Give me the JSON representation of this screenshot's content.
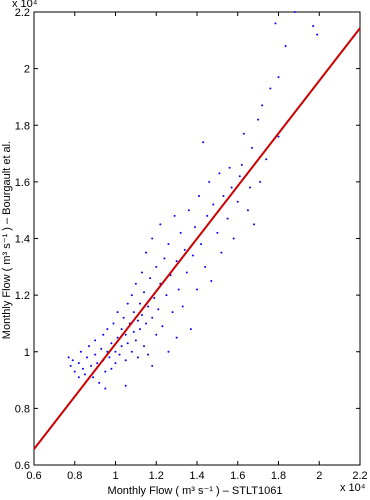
{
  "chart_data": {
    "type": "scatter",
    "x_label": "Monthly Flow ( m³ s⁻¹ )  – STLT1061",
    "y_label": "Monthly Flow ( m³ s⁻¹ )  – Bourgault et al.",
    "x_exponent": "x 10⁴",
    "y_exponent": "x 10⁴",
    "xlim": [
      0.6,
      2.2
    ],
    "ylim": [
      0.6,
      2.2
    ],
    "xticks": [
      0.6,
      0.8,
      1,
      1.2,
      1.4,
      1.6,
      1.8,
      2,
      2.2
    ],
    "yticks": [
      0.6,
      0.8,
      1,
      1.2,
      1.4,
      1.6,
      1.8,
      2,
      2.2
    ],
    "series": [
      {
        "type": "scatter",
        "color": "#0000ff",
        "x": [
          0.77,
          0.78,
          0.79,
          0.8,
          0.82,
          0.83,
          0.84,
          0.85,
          0.86,
          0.87,
          0.88,
          0.89,
          0.9,
          0.9,
          0.91,
          0.92,
          0.93,
          0.94,
          0.94,
          0.95,
          0.96,
          0.96,
          0.97,
          0.98,
          0.98,
          0.99,
          1,
          1,
          1.01,
          1.01,
          1.02,
          1.03,
          1.03,
          1.04,
          1.05,
          1.05,
          1.06,
          1.06,
          1.07,
          1.08,
          1.08,
          1.09,
          1.09,
          1.1,
          1.1,
          1.11,
          1.11,
          1.12,
          1.12,
          1.13,
          1.13,
          1.14,
          1.14,
          1.15,
          1.15,
          1.16,
          1.16,
          1.17,
          1.18,
          1.18,
          1.19,
          1.2,
          1.2,
          1.21,
          1.22,
          1.22,
          1.23,
          1.24,
          1.25,
          1.26,
          1.26,
          1.27,
          1.28,
          1.29,
          1.3,
          1.3,
          1.31,
          1.32,
          1.33,
          1.34,
          1.35,
          1.36,
          1.37,
          1.38,
          1.39,
          1.4,
          1.41,
          1.42,
          1.43,
          1.44,
          1.45,
          1.46,
          1.47,
          1.48,
          1.5,
          1.51,
          1.52,
          1.53,
          1.55,
          1.56,
          1.57,
          1.58,
          1.6,
          1.61,
          1.62,
          1.63,
          1.65,
          1.66,
          1.67,
          1.68,
          1.7,
          1.71,
          1.72,
          1.74,
          1.76,
          1.785,
          1.8,
          1.8,
          1.835,
          1.88,
          1.97,
          1.99,
          1.05,
          0.95,
          1.18,
          0.82
        ],
        "values": [
          0.98,
          0.95,
          0.97,
          0.93,
          0.96,
          1,
          0.94,
          0.92,
          0.98,
          1.02,
          0.95,
          0.91,
          0.99,
          1.04,
          0.96,
          0.89,
          1.01,
          0.97,
          1.06,
          0.93,
          1,
          1.08,
          0.98,
          1.03,
          0.94,
          1.1,
          1,
          0.96,
          1.05,
          1.14,
          0.99,
          1.08,
          1.02,
          1.12,
          0.97,
          1.06,
          1.17,
          1.03,
          1.1,
          1,
          1.2,
          1.07,
          1.14,
          1.04,
          1.24,
          1.11,
          0.98,
          1.17,
          1.08,
          1.28,
          1.13,
          1.02,
          1.21,
          1.1,
          1.35,
          1.16,
          0.99,
          1.26,
          1.12,
          1.4,
          1.19,
          1.06,
          1.3,
          1.15,
          1.24,
          1.45,
          1.09,
          1.33,
          1.2,
          1,
          1.38,
          1.27,
          1.14,
          1.48,
          1.32,
          1.05,
          1.22,
          1.42,
          1.16,
          1.36,
          1.28,
          1.5,
          1.08,
          1.34,
          1.44,
          1.22,
          1.55,
          1.38,
          1.74,
          1.3,
          1.48,
          1.6,
          1.25,
          1.52,
          1.42,
          1.63,
          1.35,
          1.55,
          1.47,
          1.65,
          1.58,
          1.4,
          1.53,
          1.62,
          1.66,
          1.77,
          1.5,
          1.58,
          1.72,
          1.45,
          1.82,
          1.6,
          1.87,
          1.68,
          1.93,
          2.16,
          1.76,
          1.97,
          2.08,
          2.2,
          2.15,
          2.12,
          0.88,
          0.87,
          0.95,
          0.91
        ]
      },
      {
        "type": "line",
        "color": "#cc0000",
        "x": [
          0.6,
          2.2
        ],
        "values": [
          0.656,
          2.143
        ]
      }
    ]
  }
}
